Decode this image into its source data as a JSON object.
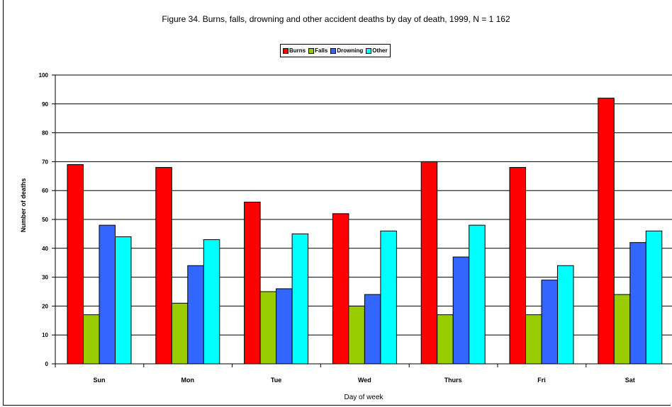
{
  "chart_data": {
    "type": "bar",
    "title": "Figure 34. Burns, falls, drowning and other accident deaths by day of death, 1999, N = 1 162",
    "xlabel": "Day of week",
    "ylabel": "Number of deaths",
    "ylim": [
      0,
      100
    ],
    "yticks": [
      0,
      10,
      20,
      30,
      40,
      50,
      60,
      70,
      80,
      90,
      100
    ],
    "categories": [
      "Sun",
      "Mon",
      "Tue",
      "Wed",
      "Thurs",
      "Fri",
      "Sat"
    ],
    "series": [
      {
        "name": "Burns",
        "color": "#ff0000",
        "values": [
          69,
          68,
          56,
          52,
          70,
          68,
          92
        ]
      },
      {
        "name": "Falls",
        "color": "#99cc00",
        "values": [
          17,
          21,
          25,
          20,
          17,
          17,
          24
        ]
      },
      {
        "name": "Drowning",
        "color": "#3366ff",
        "values": [
          48,
          34,
          26,
          24,
          37,
          29,
          42
        ]
      },
      {
        "name": "Other",
        "color": "#00ffff",
        "values": [
          44,
          43,
          45,
          46,
          48,
          34,
          46
        ]
      }
    ],
    "grid": true,
    "legend_position": "top"
  }
}
